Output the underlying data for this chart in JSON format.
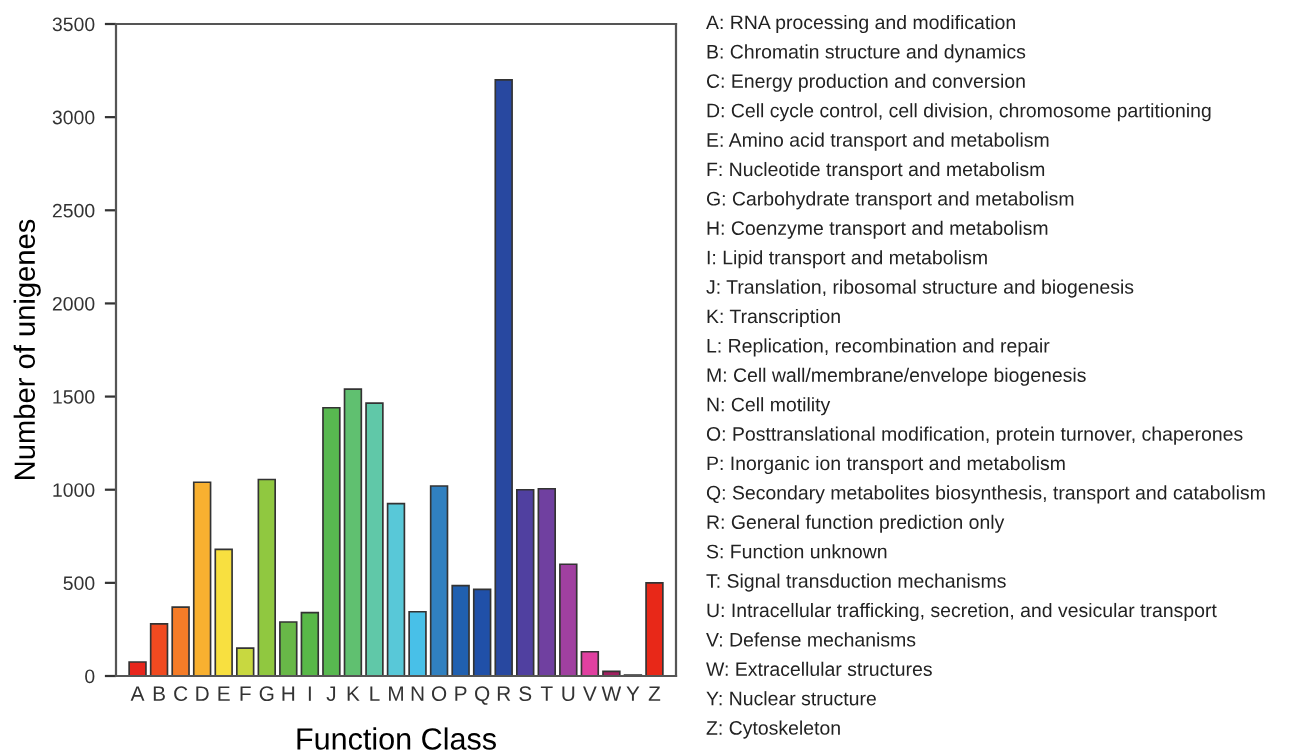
{
  "chart_data": {
    "type": "bar",
    "xlabel": "Function Class",
    "ylabel": "Number of unigenes",
    "categories": [
      "A",
      "B",
      "C",
      "D",
      "E",
      "F",
      "G",
      "H",
      "I",
      "J",
      "K",
      "L",
      "M",
      "N",
      "O",
      "P",
      "Q",
      "R",
      "S",
      "T",
      "U",
      "V",
      "W",
      "Y",
      "Z"
    ],
    "values": [
      75,
      280,
      370,
      1040,
      680,
      150,
      1055,
      290,
      340,
      1440,
      1540,
      1465,
      925,
      345,
      1020,
      485,
      465,
      3200,
      1000,
      1005,
      600,
      130,
      25,
      5,
      500
    ],
    "colors": [
      "#e8261c",
      "#f04a20",
      "#f57c28",
      "#f8b030",
      "#f8e040",
      "#c8d840",
      "#90c840",
      "#68b848",
      "#58b848",
      "#58b850",
      "#60c070",
      "#60c8a8",
      "#58c8d8",
      "#48c0e8",
      "#3080c0",
      "#2060b0",
      "#2050a8",
      "#2848a0",
      "#5040a0",
      "#7040a0",
      "#a040a0",
      "#e040a0",
      "#a02060",
      "#601030",
      "#e82818"
    ],
    "ylim": [
      0,
      3500
    ],
    "yticks": [
      0,
      500,
      1000,
      1500,
      2000,
      2500,
      3000,
      3500
    ],
    "grid": false,
    "legend": false,
    "annotations": [
      "A: RNA processing and modification",
      "B: Chromatin structure and dynamics",
      "C: Energy production and conversion",
      "D: Cell cycle control, cell division, chromosome partitioning",
      "E: Amino acid transport and metabolism",
      "F: Nucleotide transport and metabolism",
      "G: Carbohydrate transport and metabolism",
      "H: Coenzyme transport and metabolism",
      "I: Lipid transport and metabolism",
      "J: Translation, ribosomal structure and biogenesis",
      "K: Transcription",
      "L: Replication, recombination and repair",
      "M: Cell wall/membrane/envelope biogenesis",
      "N: Cell motility",
      "O: Posttranslational modification, protein turnover, chaperones",
      "P: Inorganic ion transport and metabolism",
      "Q: Secondary metabolites biosynthesis, transport and catabolism",
      "R: General function prediction only",
      "S: Function unknown",
      "T: Signal transduction mechanisms",
      "U: Intracellular trafficking, secretion, and vesicular transport",
      "V: Defense mechanisms",
      "W: Extracellular structures",
      "Y: Nuclear structure",
      "Z: Cytoskeleton"
    ]
  }
}
